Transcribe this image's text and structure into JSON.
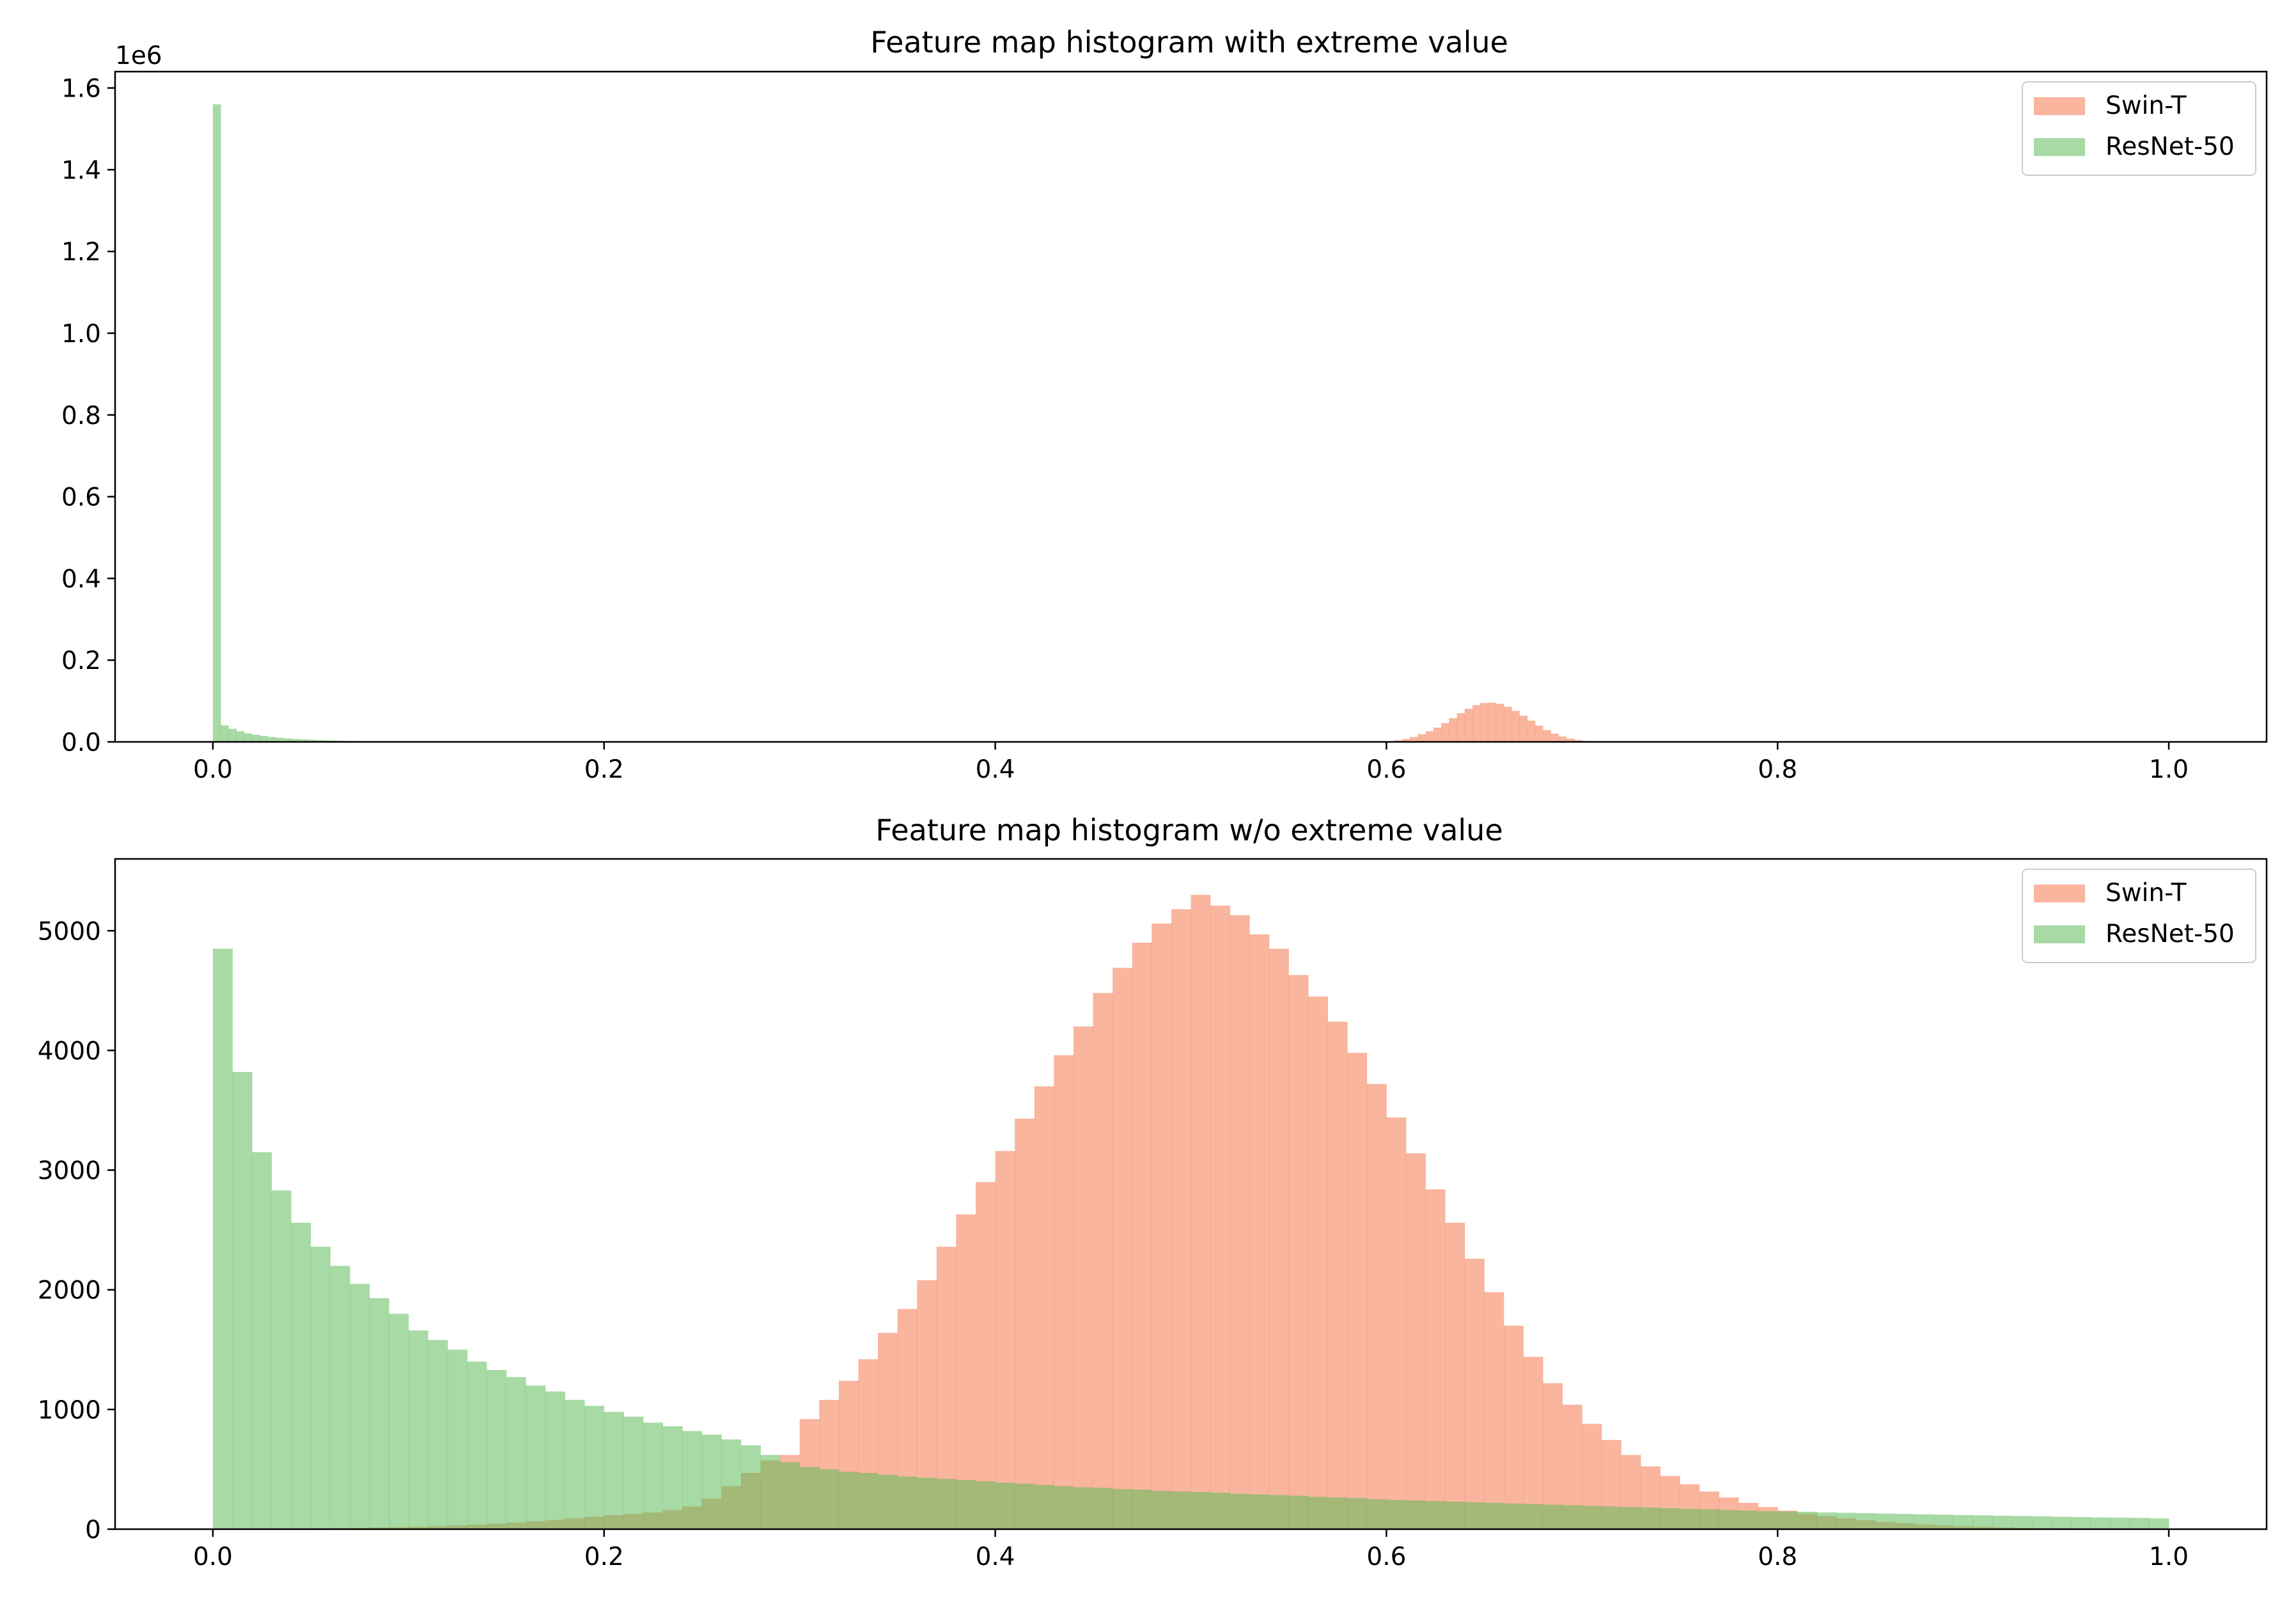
{
  "colors": {
    "swin": "#f4794f",
    "resnet": "#5fbc5a",
    "frame": "#000000"
  },
  "chart_data": [
    {
      "type": "bar",
      "title": "Feature map histogram with extreme value",
      "xlabel": "",
      "ylabel": "",
      "xlim": [
        -0.05,
        1.05
      ],
      "ylim": [
        0,
        1640000
      ],
      "y_offset_label": "1e6",
      "xticks": [
        0.0,
        0.2,
        0.4,
        0.6,
        0.8,
        1.0
      ],
      "xtick_labels": [
        "0.0",
        "0.2",
        "0.4",
        "0.6",
        "0.8",
        "1.0"
      ],
      "yticks": [
        0,
        200000,
        400000,
        600000,
        800000,
        1000000,
        1200000,
        1400000,
        1600000
      ],
      "ytick_labels": [
        "0.0",
        "0.2",
        "0.4",
        "0.6",
        "0.8",
        "1.0",
        "1.2",
        "1.4",
        "1.6"
      ],
      "grid": false,
      "legend": "top-right",
      "bin_width": 0.004,
      "series": [
        {
          "name": "Swin-T",
          "color_key": "swin",
          "x_start": 0.6,
          "values": [
            2000,
            4000,
            7000,
            12000,
            19000,
            26000,
            35000,
            46000,
            58000,
            70000,
            81000,
            90000,
            95000,
            96000,
            93000,
            86000,
            76000,
            64000,
            52000,
            40000,
            29000,
            20000,
            13000,
            8000,
            4500,
            2500,
            1200
          ]
        },
        {
          "name": "ResNet-50",
          "color_key": "resnet",
          "x_start": 0.0,
          "values": [
            1560000,
            40000,
            32000,
            26000,
            21000,
            17500,
            14500,
            12000,
            10000,
            8500,
            7200,
            6200,
            5300,
            4500,
            3900,
            3300,
            2800,
            2400,
            2000,
            1700,
            1400,
            1200,
            1000,
            850
          ]
        }
      ]
    },
    {
      "type": "bar",
      "title": "Feature map histogram w/o extreme value",
      "xlabel": "",
      "ylabel": "",
      "xlim": [
        -0.05,
        1.05
      ],
      "ylim": [
        0,
        5600
      ],
      "xticks": [
        0.0,
        0.2,
        0.4,
        0.6,
        0.8,
        1.0
      ],
      "xtick_labels": [
        "0.0",
        "0.2",
        "0.4",
        "0.6",
        "0.8",
        "1.0"
      ],
      "yticks": [
        0,
        1000,
        2000,
        3000,
        4000,
        5000
      ],
      "ytick_labels": [
        "0",
        "1000",
        "2000",
        "3000",
        "4000",
        "5000"
      ],
      "grid": false,
      "legend": "top-right",
      "bin_width": 0.01,
      "series": [
        {
          "name": "Swin-T",
          "color_key": "swin",
          "x_start": 0.0,
          "values": [
            0,
            0,
            2,
            3,
            5,
            7,
            9,
            11,
            14,
            17,
            20,
            25,
            31,
            38,
            45,
            55,
            65,
            77,
            90,
            103,
            117,
            128,
            140,
            158,
            190,
            255,
            360,
            470,
            575,
            620,
            920,
            1080,
            1240,
            1420,
            1640,
            1840,
            2080,
            2360,
            2630,
            2900,
            3160,
            3430,
            3700,
            3960,
            4200,
            4480,
            4690,
            4900,
            5060,
            5180,
            5300,
            5210,
            5130,
            4970,
            4850,
            4630,
            4450,
            4240,
            3980,
            3720,
            3440,
            3140,
            2840,
            2560,
            2260,
            1980,
            1700,
            1440,
            1220,
            1040,
            880,
            745,
            620,
            525,
            445,
            375,
            315,
            265,
            220,
            185,
            155,
            130,
            110,
            90,
            75,
            60,
            50,
            40,
            32,
            25,
            20,
            15,
            12,
            9,
            7,
            5,
            4,
            3,
            2,
            1
          ]
        },
        {
          "name": "ResNet-50",
          "color_key": "resnet",
          "x_start": 0.0,
          "values": [
            4850,
            3820,
            3150,
            2830,
            2560,
            2360,
            2200,
            2050,
            1930,
            1800,
            1660,
            1580,
            1500,
            1400,
            1330,
            1270,
            1200,
            1150,
            1080,
            1030,
            980,
            940,
            890,
            860,
            820,
            790,
            750,
            700,
            620,
            560,
            520,
            500,
            480,
            470,
            455,
            440,
            430,
            420,
            410,
            400,
            390,
            380,
            370,
            360,
            350,
            345,
            335,
            330,
            320,
            315,
            310,
            305,
            295,
            290,
            285,
            280,
            270,
            265,
            260,
            250,
            245,
            240,
            235,
            230,
            225,
            220,
            215,
            210,
            205,
            200,
            195,
            190,
            185,
            180,
            175,
            170,
            165,
            160,
            155,
            150,
            148,
            145,
            140,
            137,
            134,
            130,
            127,
            124,
            121,
            118,
            115,
            112,
            110,
            107,
            104,
            101,
            98,
            96,
            94,
            90
          ]
        }
      ]
    }
  ]
}
